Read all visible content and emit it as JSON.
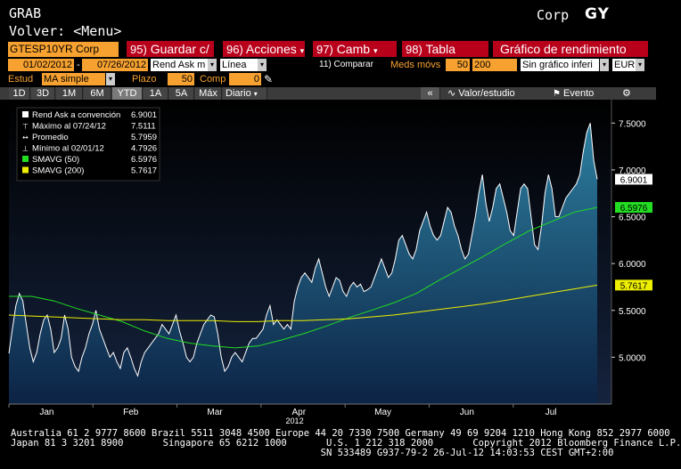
{
  "header": {
    "function": "GRAB",
    "back": "Volver: <Menu>",
    "market_sector": "Corp",
    "gy_label": "GY"
  },
  "toolbar": {
    "ticker": "GTESP10YR Corp",
    "buttons": [
      {
        "num": "95)",
        "label": "Guardar c/"
      },
      {
        "num": "96)",
        "label": "Acciones"
      },
      {
        "num": "97)",
        "label": "Camb"
      },
      {
        "num": "98)",
        "label": "Tabla"
      },
      {
        "num": "",
        "label": "Gráfico de rendimiento"
      }
    ]
  },
  "settings_row1": {
    "start_date": "01/02/2012",
    "end_date": "07/26/2012",
    "field": "Rend Ask m",
    "chart_type": "Línea",
    "compare": "11) Comparar",
    "moving_avg_label": "Meds móvs",
    "ma_short": "50",
    "ma_long": "200",
    "no_chart": "Sin gráfico inferi",
    "currency": "EUR"
  },
  "settings_row2": {
    "study_label": "Estud",
    "study": "MA simple",
    "term_label": "Plazo",
    "term": "50",
    "comp_label": "Comp",
    "comp": "0"
  },
  "period_tabs": [
    "1D",
    "3D",
    "1M",
    "6M",
    "YTD",
    "1A",
    "5A",
    "Máx"
  ],
  "active_tab": "YTD",
  "frequency": "Diario",
  "right_tools": {
    "collapse": "«",
    "value_study": "Valor/estudio",
    "event": "Evento",
    "gear": "⚙"
  },
  "legend": [
    {
      "label": "Rend Ask a convención",
      "value": "6.9001",
      "marker": "white-square"
    },
    {
      "label": "Máximo al 07/24/12",
      "value": "7.5111",
      "marker": "max-arrow"
    },
    {
      "label": "Promedio",
      "value": "5.7959",
      "marker": "avg-arrow"
    },
    {
      "label": "Mínimo al 02/01/12",
      "value": "4.7926",
      "marker": "min-arrow"
    },
    {
      "label": "SMAVG (50)",
      "value": "6.5976",
      "marker": "green-square"
    },
    {
      "label": "SMAVG (200)",
      "value": "5.7617",
      "marker": "yellow-square"
    }
  ],
  "chart_data": {
    "type": "area",
    "title": "",
    "xlabel": "2012",
    "ylabel": "",
    "x_ticks": [
      "Jan",
      "Feb",
      "Mar",
      "Apr",
      "May",
      "Jun",
      "Jul"
    ],
    "ylim": [
      4.5,
      7.75
    ],
    "y_ticks": [
      5.0,
      5.5,
      6.0,
      6.5,
      7.0,
      7.5
    ],
    "series": [
      {
        "name": "Rend Ask a convención",
        "color": "#ffffff",
        "values": [
          5.04,
          5.3,
          5.55,
          5.68,
          5.6,
          5.35,
          5.1,
          4.95,
          5.05,
          5.25,
          5.4,
          5.45,
          5.3,
          5.05,
          5.1,
          5.2,
          5.45,
          5.3,
          5.0,
          4.9,
          4.85,
          5.0,
          5.1,
          5.25,
          5.35,
          5.5,
          5.3,
          5.2,
          5.1,
          5.0,
          5.05,
          4.95,
          4.88,
          5.05,
          5.1,
          5.0,
          4.88,
          4.8,
          4.95,
          5.05,
          5.1,
          5.15,
          5.2,
          5.25,
          5.35,
          5.3,
          5.25,
          5.35,
          5.45,
          5.28,
          5.15,
          5.0,
          4.95,
          5.0,
          5.15,
          5.25,
          5.35,
          5.4,
          5.45,
          5.43,
          5.25,
          5.0,
          4.85,
          4.9,
          5.0,
          5.05,
          5.0,
          4.95,
          5.05,
          5.15,
          5.2,
          5.2,
          5.25,
          5.3,
          5.45,
          5.55,
          5.35,
          5.4,
          5.35,
          5.3,
          5.35,
          5.3,
          5.6,
          5.75,
          5.85,
          5.9,
          5.85,
          5.8,
          5.95,
          6.05,
          5.9,
          5.75,
          5.65,
          5.75,
          5.85,
          5.82,
          5.7,
          5.65,
          5.75,
          5.8,
          5.75,
          5.78,
          5.7,
          5.72,
          5.75,
          5.85,
          5.95,
          6.05,
          5.95,
          5.85,
          5.9,
          6.05,
          6.25,
          6.3,
          6.2,
          6.1,
          6.05,
          6.15,
          6.35,
          6.45,
          6.55,
          6.4,
          6.3,
          6.25,
          6.3,
          6.45,
          6.6,
          6.55,
          6.4,
          6.3,
          6.15,
          6.05,
          6.1,
          6.3,
          6.5,
          6.75,
          6.95,
          6.65,
          6.45,
          6.6,
          6.8,
          6.85,
          6.7,
          6.55,
          6.35,
          6.3,
          6.55,
          6.8,
          6.85,
          6.8,
          6.5,
          6.2,
          6.15,
          6.4,
          6.75,
          6.95,
          6.8,
          6.5,
          6.5,
          6.6,
          6.7,
          6.75,
          6.8,
          6.85,
          6.95,
          7.2,
          7.4,
          7.5,
          7.1,
          6.9
        ]
      },
      {
        "name": "SMAVG (50)",
        "color": "#22dd22",
        "values": [
          5.65,
          5.65,
          5.6,
          5.52,
          5.45,
          5.38,
          5.28,
          5.2,
          5.15,
          5.12,
          5.1,
          5.12,
          5.18,
          5.25,
          5.33,
          5.42,
          5.5,
          5.58,
          5.68,
          5.82,
          5.95,
          6.08,
          6.22,
          6.35,
          6.45,
          6.55,
          6.6
        ]
      },
      {
        "name": "SMAVG (200)",
        "color": "#eeee00",
        "values": [
          5.45,
          5.44,
          5.43,
          5.42,
          5.41,
          5.4,
          5.4,
          5.39,
          5.39,
          5.39,
          5.38,
          5.38,
          5.39,
          5.39,
          5.4,
          5.41,
          5.43,
          5.45,
          5.48,
          5.51,
          5.54,
          5.57,
          5.61,
          5.65,
          5.69,
          5.73,
          5.77
        ]
      }
    ],
    "last_value_labels": [
      {
        "value": "6.9001",
        "color": "#ffffff"
      },
      {
        "value": "6.5976",
        "color": "#22dd22"
      },
      {
        "value": "5.7617",
        "color": "#eeee00"
      }
    ]
  },
  "footer": {
    "line1": "Australia 61 2 9777 8600 Brazil 5511 3048 4500 Europe 44 20 7330 7500 Germany 49 69 9204 1210 Hong Kong 852 2977 6000",
    "line2": "Japan 81 3 3201 8900       Singapore 65 6212 1000       U.S. 1 212 318 2000       Copyright 2012 Bloomberg Finance L.P.",
    "line3": "                                                       SN 533489 G937-79-2 26-Jul-12 14:03:53 CEST GMT+2:00"
  }
}
